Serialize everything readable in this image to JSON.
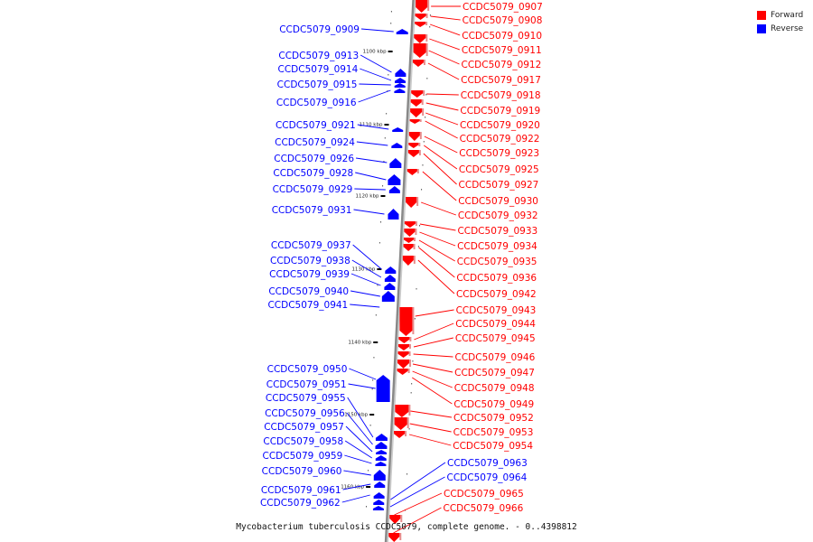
{
  "caption": "Mycobacterium tuberculosis CCDC5079, complete genome. - 0..4398812",
  "legend": {
    "forward": {
      "label": "Forward",
      "color": "#ff0000"
    },
    "reverse": {
      "label": "Reverse",
      "color": "#0000ff"
    }
  },
  "colors": {
    "forward": "#ff0000",
    "reverse": "#0000ff",
    "backbone": "#888888",
    "tick": "#000000"
  },
  "ticks": [
    "1100 kbp",
    "1110 kbp",
    "1120 kbp",
    "1130 kbp",
    "1140 kbp",
    "1150 kbp",
    "1160 kbp"
  ],
  "reverse_genes": [
    "CCDC5079_0909",
    "CCDC5079_0913",
    "CCDC5079_0914",
    "CCDC5079_0915",
    "CCDC5079_0916",
    "CCDC5079_0921",
    "CCDC5079_0924",
    "CCDC5079_0926",
    "CCDC5079_0928",
    "CCDC5079_0929",
    "CCDC5079_0931",
    "CCDC5079_0937",
    "CCDC5079_0938",
    "CCDC5079_0939",
    "CCDC5079_0940",
    "CCDC5079_0941",
    "CCDC5079_0950",
    "CCDC5079_0951",
    "CCDC5079_0955",
    "CCDC5079_0956",
    "CCDC5079_0957",
    "CCDC5079_0958",
    "CCDC5079_0959",
    "CCDC5079_0960",
    "CCDC5079_0961",
    "CCDC5079_0962"
  ],
  "forward_genes": [
    "CCDC5079_0907",
    "CCDC5079_0908",
    "CCDC5079_0910",
    "CCDC5079_0911",
    "CCDC5079_0912",
    "CCDC5079_0917",
    "CCDC5079_0918",
    "CCDC5079_0919",
    "CCDC5079_0920",
    "CCDC5079_0922",
    "CCDC5079_0923",
    "CCDC5079_0925",
    "CCDC5079_0927",
    "CCDC5079_0930",
    "CCDC5079_0932",
    "CCDC5079_0933",
    "CCDC5079_0934",
    "CCDC5079_0935",
    "CCDC5079_0936",
    "CCDC5079_0942",
    "CCDC5079_0943",
    "CCDC5079_0944",
    "CCDC5079_0945",
    "CCDC5079_0946",
    "CCDC5079_0947",
    "CCDC5079_0948",
    "CCDC5079_0949",
    "CCDC5079_0952",
    "CCDC5079_0953",
    "CCDC5079_0954"
  ],
  "lower_forward_genes": [
    "CCDC5079_0965",
    "CCDC5079_0966"
  ],
  "lower_reverse_genes": [
    "CCDC5079_0963",
    "CCDC5079_0964"
  ]
}
